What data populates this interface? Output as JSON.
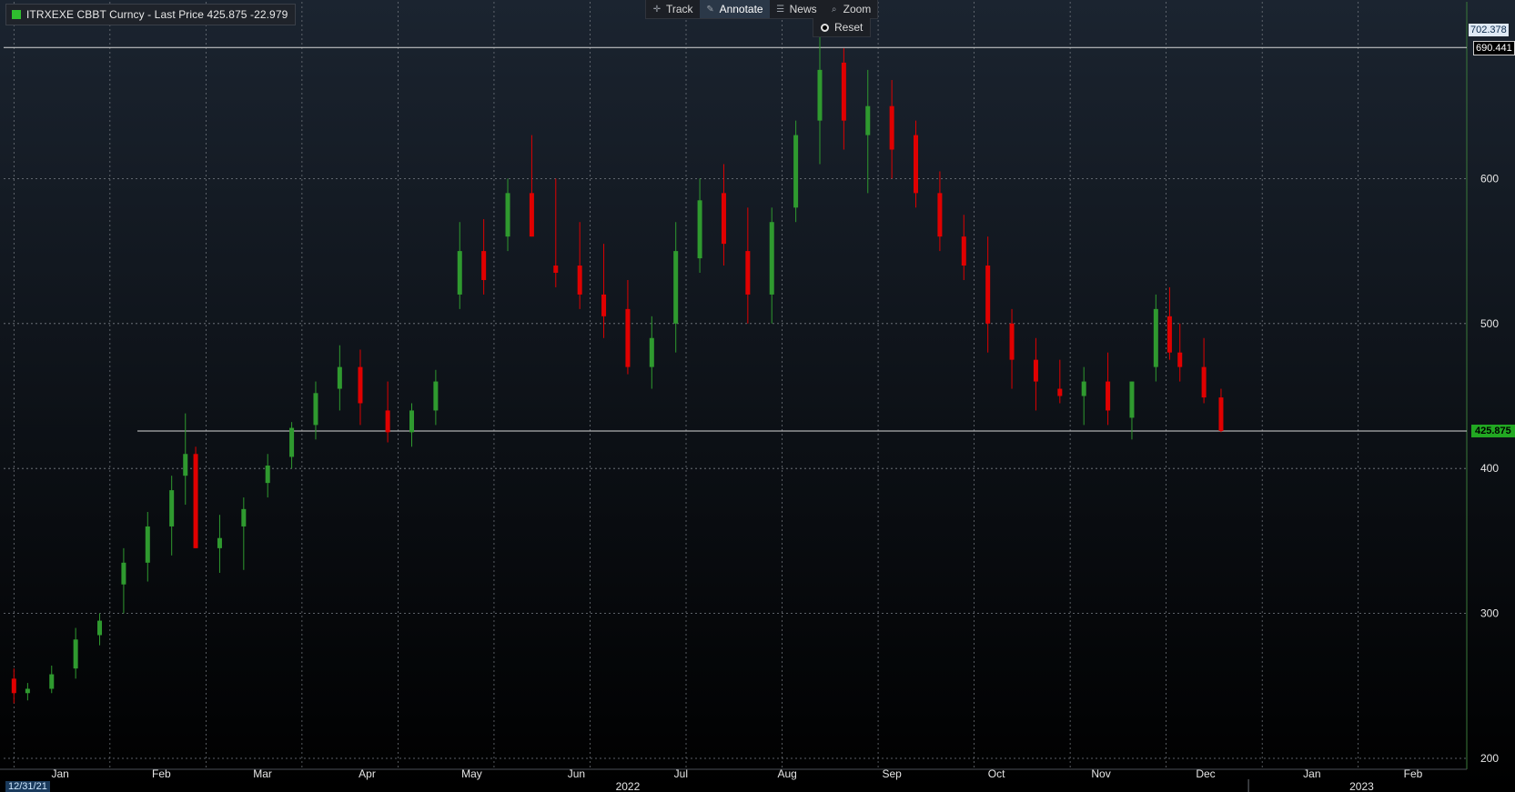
{
  "legend": {
    "text": "ITRXEXE CBBT Curncy - Last Price 425.875  -22.979",
    "color": "#2fbf2f"
  },
  "toolbar": {
    "buttons": [
      {
        "label": "Track",
        "icon": "crosshair-icon"
      },
      {
        "label": "Annotate",
        "icon": "pencil-icon"
      },
      {
        "label": "News",
        "icon": "news-icon"
      },
      {
        "label": "Zoom",
        "icon": "magnifier-icon"
      }
    ],
    "active": "Annotate",
    "reset_label": "Reset"
  },
  "price_tags": {
    "high": "702.378",
    "resistance": "690.441",
    "last": "425.875"
  },
  "x_axis": {
    "start_label": "12/31/21",
    "year_labels": [
      "2022",
      "2023"
    ]
  },
  "colors": {
    "up": "#2f9a2f",
    "down": "#e00000",
    "grid": "#7a7f86",
    "hline": "#d8d8d8",
    "axis_text": "#e6e6e6"
  },
  "chart_data": {
    "type": "candlestick",
    "title": "ITRXEXE CBBT Curncy - Last Price",
    "last_price": 425.875,
    "change": -22.979,
    "ylim": [
      200,
      702.378
    ],
    "y_ticks": [
      200,
      300,
      400,
      500,
      600
    ],
    "x_range": [
      "2021-12-31",
      "2023-02-28"
    ],
    "x_ticks": [
      "Jan",
      "Feb",
      "Mar",
      "Apr",
      "May",
      "Jun",
      "Jul",
      "Aug",
      "Sep",
      "Oct",
      "Nov",
      "Dec",
      "Jan",
      "Feb"
    ],
    "horizontal_lines": [
      690.441,
      425.875
    ],
    "grid": true,
    "series": [
      {
        "dates": [
          "2022-01-03",
          "2022-01-07",
          "2022-01-14",
          "2022-01-21",
          "2022-01-28",
          "2022-02-04",
          "2022-02-11",
          "2022-02-18",
          "2022-02-22",
          "2022-02-25",
          "2022-03-04",
          "2022-03-11",
          "2022-03-18",
          "2022-03-25",
          "2022-04-01",
          "2022-04-08",
          "2022-04-14",
          "2022-04-22",
          "2022-04-29",
          "2022-05-06",
          "2022-05-13",
          "2022-05-20",
          "2022-05-27",
          "2022-06-03",
          "2022-06-10",
          "2022-06-17",
          "2022-06-24",
          "2022-07-01",
          "2022-07-08",
          "2022-07-15",
          "2022-07-22",
          "2022-07-29",
          "2022-08-05",
          "2022-08-12",
          "2022-08-19",
          "2022-08-26",
          "2022-09-02",
          "2022-09-09",
          "2022-09-16",
          "2022-09-23",
          "2022-09-30",
          "2022-10-07",
          "2022-10-14",
          "2022-10-21",
          "2022-10-28",
          "2022-11-04",
          "2022-11-11",
          "2022-11-18",
          "2022-11-25",
          "2022-12-02",
          "2022-12-06",
          "2022-12-09",
          "2022-12-16",
          "2022-12-21"
        ],
        "open": [
          255,
          245,
          248,
          262,
          285,
          320,
          335,
          360,
          395,
          410,
          345,
          360,
          390,
          408,
          430,
          455,
          470,
          440,
          425,
          440,
          520,
          550,
          560,
          590,
          540,
          540,
          520,
          510,
          470,
          500,
          545,
          590,
          550,
          520,
          580,
          640,
          680,
          630,
          650,
          630,
          590,
          560,
          540,
          500,
          475,
          455,
          450,
          460,
          435,
          470,
          505,
          480,
          470,
          449
        ],
        "high": [
          262,
          252,
          264,
          290,
          300,
          345,
          370,
          395,
          438,
          415,
          368,
          380,
          410,
          432,
          460,
          485,
          482,
          460,
          445,
          468,
          570,
          572,
          600,
          630,
          600,
          570,
          555,
          530,
          505,
          570,
          600,
          610,
          580,
          580,
          640,
          700,
          690,
          675,
          668,
          640,
          605,
          575,
          560,
          510,
          490,
          475,
          470,
          480,
          460,
          520,
          525,
          500,
          490,
          455
        ],
        "low": [
          238,
          240,
          245,
          255,
          278,
          300,
          322,
          340,
          375,
          345,
          328,
          330,
          380,
          400,
          420,
          440,
          430,
          418,
          415,
          430,
          510,
          520,
          550,
          560,
          525,
          510,
          490,
          465,
          455,
          480,
          535,
          540,
          500,
          500,
          570,
          610,
          620,
          590,
          600,
          580,
          550,
          530,
          480,
          455,
          440,
          445,
          430,
          430,
          420,
          460,
          475,
          460,
          445,
          425
        ],
        "close": [
          245,
          248,
          258,
          282,
          295,
          335,
          360,
          385,
          410,
          345,
          352,
          372,
          402,
          428,
          452,
          470,
          445,
          425,
          440,
          460,
          550,
          530,
          590,
          560,
          535,
          520,
          505,
          470,
          490,
          550,
          585,
          555,
          520,
          570,
          630,
          675,
          640,
          650,
          620,
          590,
          560,
          540,
          500,
          475,
          460,
          450,
          460,
          440,
          460,
          510,
          480,
          470,
          449,
          425.875
        ]
      }
    ]
  }
}
